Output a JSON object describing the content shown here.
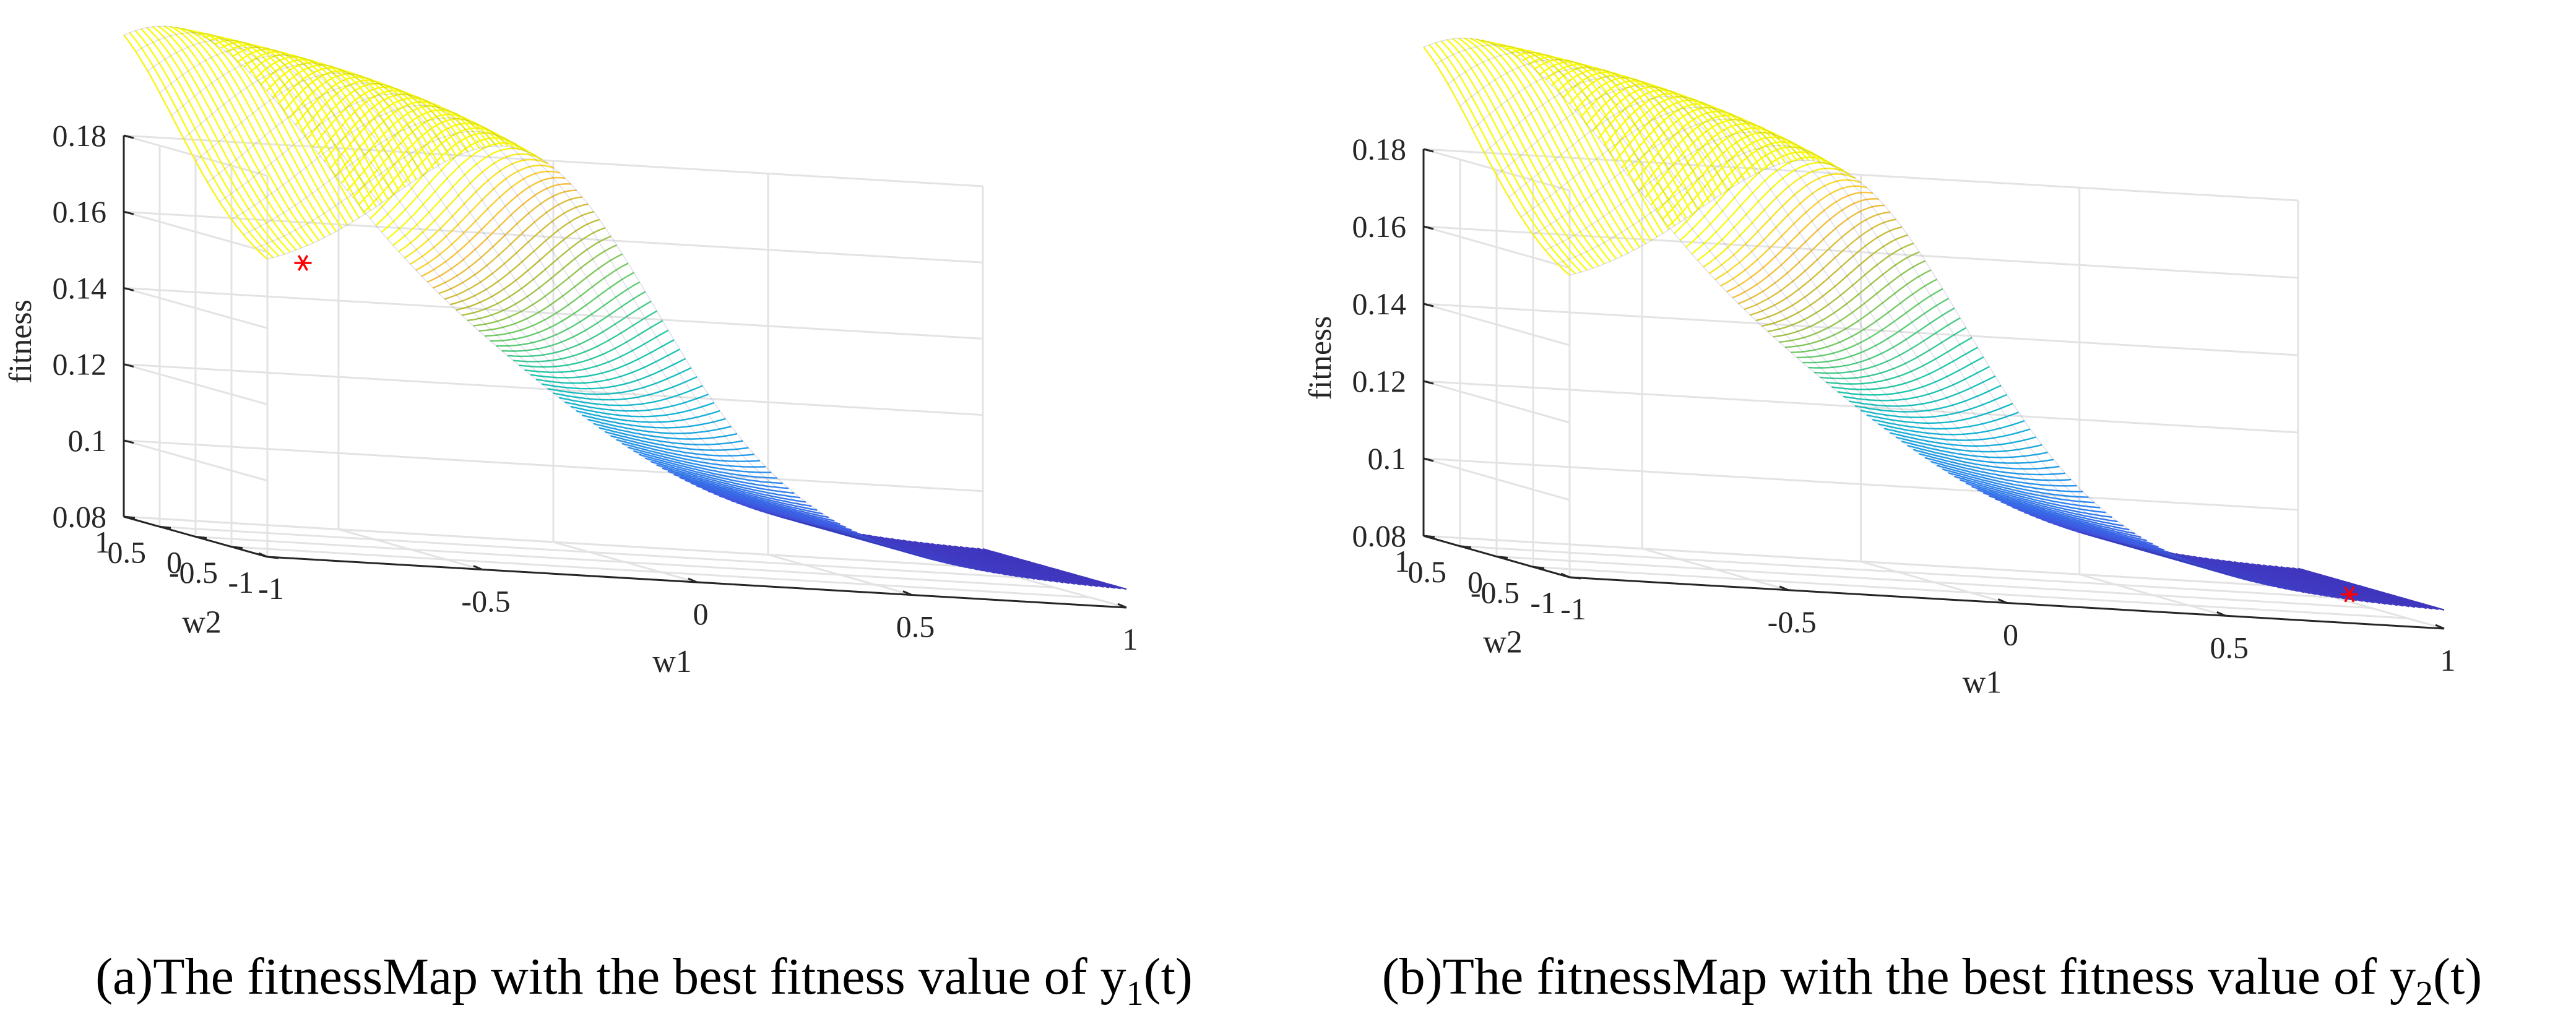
{
  "chart_data": [
    {
      "type": "surface",
      "panel": "a",
      "zlabel": "fitness",
      "xlabel": "w1",
      "ylabel": "w2",
      "xlim": [
        -1,
        1
      ],
      "ylim": [
        -1,
        1
      ],
      "zlim": [
        0.08,
        0.18
      ],
      "xticks": [
        "-1",
        "-0.5",
        "0",
        "0.5",
        "1"
      ],
      "yticks": [
        "-1",
        "-0.5",
        "0",
        "0.5",
        "1"
      ],
      "zticks": [
        "0.08",
        "0.1",
        "0.12",
        "0.14",
        "0.16",
        "0.18"
      ],
      "best_point": {
        "w1": -0.75,
        "w2": 0.0,
        "fitness": 0.1535
      },
      "caption": {
        "prefix": "(a)The fitnessMap with the best fitness value of y",
        "sub": "1",
        "suffix": "(t)"
      }
    },
    {
      "type": "surface",
      "panel": "b",
      "zlabel": "fitness",
      "xlabel": "w1",
      "ylabel": "w2",
      "xlim": [
        -1,
        1
      ],
      "ylim": [
        -1,
        1
      ],
      "zlim": [
        0.08,
        0.18
      ],
      "xticks": [
        "-1",
        "-0.5",
        "0",
        "0.5",
        "1"
      ],
      "yticks": [
        "-1",
        "-0.5",
        "0",
        "0.5",
        "1"
      ],
      "zticks": [
        "0.08",
        "0.1",
        "0.12",
        "0.14",
        "0.16",
        "0.18"
      ],
      "best_point": {
        "w1": 0.8,
        "w2": -0.9,
        "fitness": 0.087
      },
      "caption": {
        "prefix": "(b)The fitnessMap with the best fitness value of y",
        "sub": "2",
        "suffix": "(t)"
      }
    }
  ]
}
